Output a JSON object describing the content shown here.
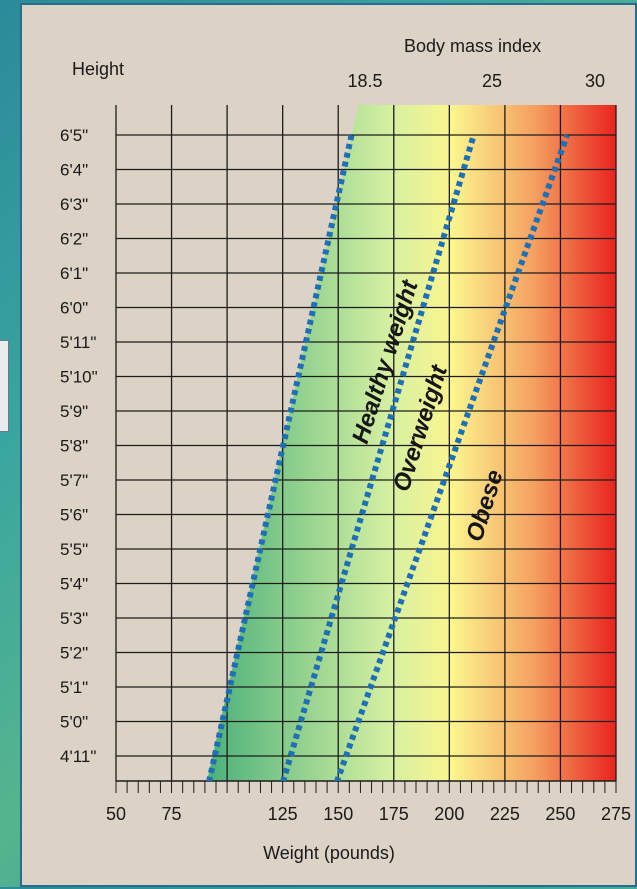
{
  "chart_data": {
    "type": "line",
    "title": "",
    "y_axis_title": "Height",
    "x_axis_title": "Weight (pounds)",
    "top_axis_title": "Body mass index",
    "x_ticks": [
      "50",
      "75",
      "125",
      "150",
      "175",
      "200",
      "225",
      "250",
      "275"
    ],
    "x_tick_values": [
      50,
      75,
      125,
      150,
      175,
      200,
      225,
      250,
      275
    ],
    "xlim": [
      50,
      275
    ],
    "y_ticks": [
      "6'5\"",
      "6'4\"",
      "6'3\"",
      "6'2\"",
      "6'1\"",
      "6'0\"",
      "5'11\"",
      "5'10\"",
      "5'9\"",
      "5'8\"",
      "5'7\"",
      "5'6\"",
      "5'5\"",
      "5'4\"",
      "5'3\"",
      "5'2\"",
      "5'1\"",
      "5'0\"",
      "4'11\""
    ],
    "y_tick_inches": [
      77,
      76,
      75,
      74,
      73,
      72,
      71,
      70,
      69,
      68,
      67,
      66,
      65,
      64,
      63,
      62,
      61,
      60,
      59
    ],
    "bmi_labels": [
      "18.5",
      "25",
      "30"
    ],
    "series": [
      {
        "bmi": 18.5,
        "x": [
          91,
          156
        ],
        "y": [
          58,
          77
        ],
        "color": "#1f6fb5",
        "style": "dotted"
      },
      {
        "bmi": 25,
        "x": [
          124,
          211
        ],
        "y": [
          58,
          77
        ],
        "color": "#1f6fb5",
        "style": "dotted"
      },
      {
        "bmi": 30,
        "x": [
          148,
          253
        ],
        "y": [
          58,
          77
        ],
        "color": "#1f6fb5",
        "style": "dotted"
      }
    ],
    "regions": [
      {
        "label": "Healthy weight",
        "color": "#4bb07a"
      },
      {
        "label": "Overweight",
        "color": "#fbf58e"
      },
      {
        "label": "Obese",
        "color": "#e8231f"
      }
    ],
    "grid": true
  }
}
